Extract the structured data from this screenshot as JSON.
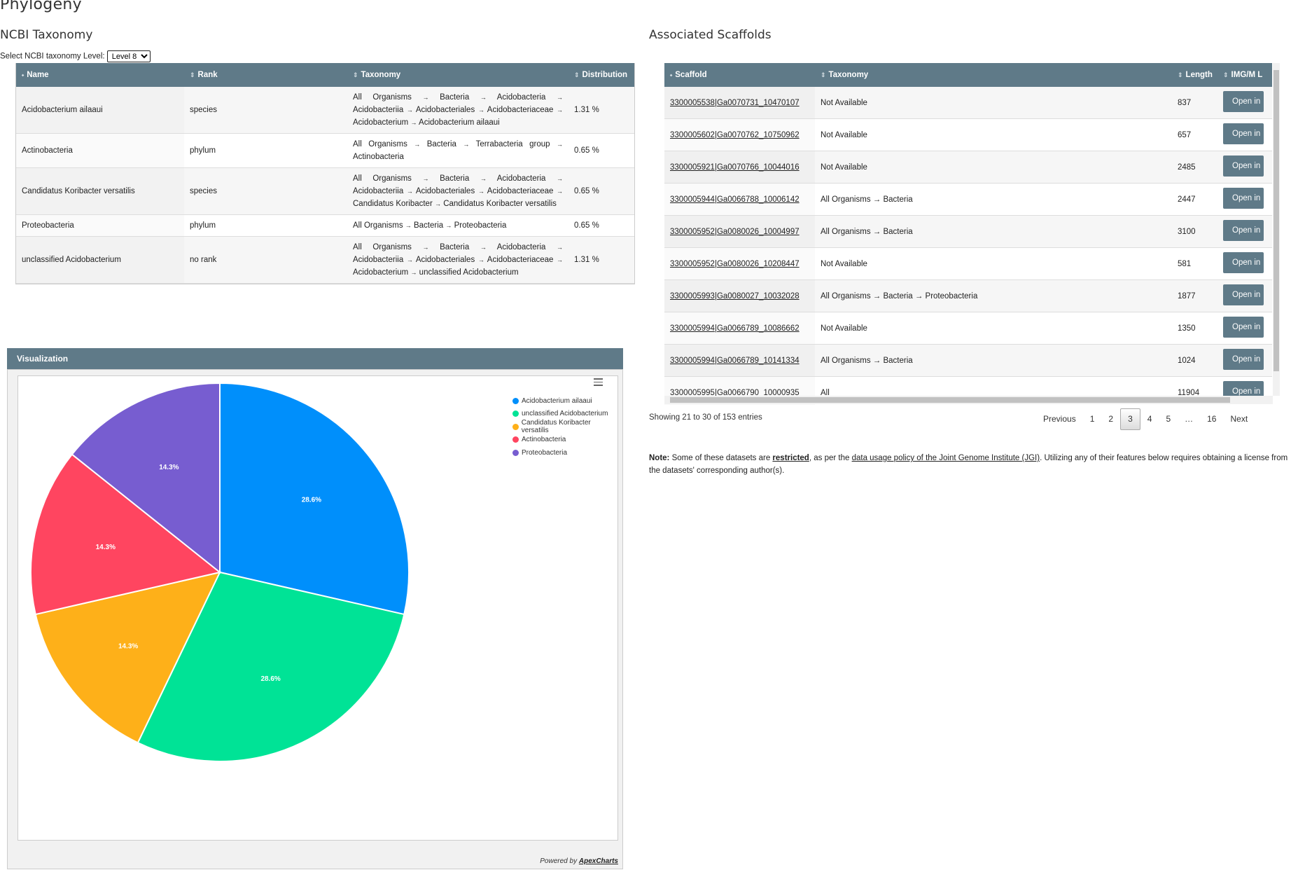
{
  "page": {
    "title": "Phylogeny"
  },
  "ncbi": {
    "title": "NCBI Taxonomy",
    "level_label": "Select NCBI taxonomy Level:",
    "level_value": "Level 8",
    "columns": [
      "Name",
      "Rank",
      "Taxonomy",
      "Distribution"
    ],
    "rows": [
      {
        "name": "Acidobacterium ailaaui",
        "rank": "species",
        "taxonomy": [
          "All Organisms",
          "Bacteria",
          "Acidobacteria",
          "Acidobacteriia",
          "Acidobacteriales",
          "Acidobacteriaceae",
          "Acidobacterium",
          "Acidobacterium ailaaui"
        ],
        "distribution": "1.31 %"
      },
      {
        "name": "Actinobacteria",
        "rank": "phylum",
        "taxonomy": [
          "All Organisms",
          "Bacteria",
          "Terrabacteria group",
          "Actinobacteria"
        ],
        "distribution": "0.65 %"
      },
      {
        "name": "Candidatus Koribacter versatilis",
        "rank": "species",
        "taxonomy": [
          "All Organisms",
          "Bacteria",
          "Acidobacteria",
          "Acidobacteriia",
          "Acidobacteriales",
          "Acidobacteriaceae",
          "Candidatus Koribacter",
          "Candidatus Koribacter versatilis"
        ],
        "distribution": "0.65 %"
      },
      {
        "name": "Proteobacteria",
        "rank": "phylum",
        "taxonomy": [
          "All Organisms",
          "Bacteria",
          "Proteobacteria"
        ],
        "distribution": "0.65 %"
      },
      {
        "name": "unclassified Acidobacterium",
        "rank": "no rank",
        "taxonomy": [
          "All Organisms",
          "Bacteria",
          "Acidobacteria",
          "Acidobacteriia",
          "Acidobacteriales",
          "Acidobacteriaceae",
          "Acidobacterium",
          "unclassified Acidobacterium"
        ],
        "distribution": "1.31 %"
      }
    ]
  },
  "scaffolds": {
    "title": "Associated Scaffolds",
    "columns": [
      "Scaffold",
      "Taxonomy",
      "Length",
      "IMG/M L"
    ],
    "open_label": "Open in",
    "rows": [
      {
        "scaffold": "3300005538|Ga0070731_10470107",
        "taxonomy": "Not Available",
        "length": "837"
      },
      {
        "scaffold": "3300005602|Ga0070762_10750962",
        "taxonomy": "Not Available",
        "length": "657"
      },
      {
        "scaffold": "3300005921|Ga0070766_10044016",
        "taxonomy": "Not Available",
        "length": "2485"
      },
      {
        "scaffold": "3300005944|Ga0066788_10006142",
        "taxonomy": "All Organisms → Bacteria",
        "length": "2447"
      },
      {
        "scaffold": "3300005952|Ga0080026_10004997",
        "taxonomy": "All Organisms → Bacteria",
        "length": "3100"
      },
      {
        "scaffold": "3300005952|Ga0080026_10208447",
        "taxonomy": "Not Available",
        "length": "581"
      },
      {
        "scaffold": "3300005993|Ga0080027_10032028",
        "taxonomy": "All Organisms → Bacteria → Proteobacteria",
        "length": "1877"
      },
      {
        "scaffold": "3300005994|Ga0066789_10086662",
        "taxonomy": "Not Available",
        "length": "1350"
      },
      {
        "scaffold": "3300005994|Ga0066789_10141334",
        "taxonomy": "All Organisms → Bacteria",
        "length": "1024"
      },
      {
        "scaffold": "3300005995|Ga0066790_10000935",
        "taxonomy": "All",
        "length": "11904"
      }
    ],
    "info": "Showing 21 to 30 of 153 entries",
    "pager": [
      "Previous",
      "1",
      "2",
      "3",
      "4",
      "5",
      "…",
      "16",
      "Next"
    ],
    "current_page": "3"
  },
  "note": {
    "bold": "Note:",
    "text1": " Some of these datasets are ",
    "restricted": "restricted",
    "text2": ", as per the ",
    "policy_link": "data usage policy of the Joint Genome Institute (JGI)",
    "text3": ". Utilizing any of their features below requires obtaining a license from the datasets' corresponding author(s)."
  },
  "visualization": {
    "title": "Visualization",
    "powered_by": "Powered by ",
    "powered_link": "ApexCharts"
  },
  "chart_data": {
    "type": "pie",
    "categories": [
      "Acidobacterium ailaaui",
      "unclassified Acidobacterium",
      "Candidatus Koribacter versatilis",
      "Actinobacteria",
      "Proteobacteria"
    ],
    "values": [
      28.6,
      28.6,
      14.3,
      14.3,
      14.3
    ],
    "labels": [
      "28.6%",
      "28.6%",
      "14.3%",
      "14.3%",
      "14.3%"
    ],
    "colors": [
      "#008ffb",
      "#00e396",
      "#feb019",
      "#ff4560",
      "#775dd0"
    ],
    "legend_position": "top-right"
  }
}
